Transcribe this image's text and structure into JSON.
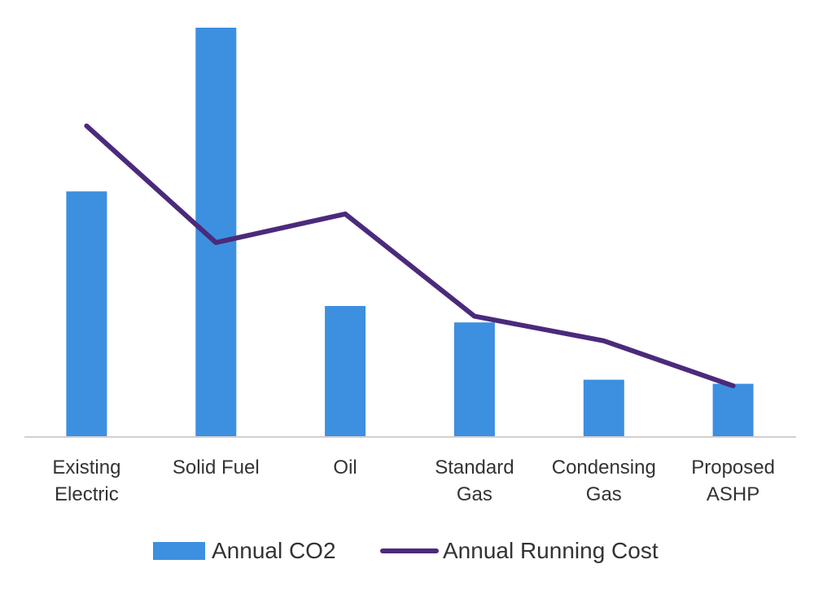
{
  "chart_data": {
    "type": "bar",
    "categories": [
      [
        "Existing",
        "Electric"
      ],
      [
        "Solid Fuel"
      ],
      [
        "Oil"
      ],
      [
        "Standard",
        "Gas"
      ],
      [
        "Condensing",
        "Gas"
      ],
      [
        "Proposed",
        "ASHP"
      ]
    ],
    "series": [
      {
        "name": "Annual CO2",
        "type": "bar",
        "color": "#3d8fe0",
        "values": [
          6.0,
          10.0,
          3.2,
          2.8,
          1.4,
          1.3
        ]
      },
      {
        "name": "Annual Running Cost",
        "type": "line",
        "color": "#4b2a7b",
        "values": [
          7.6,
          4.75,
          5.45,
          2.95,
          2.35,
          1.25
        ]
      }
    ],
    "title": "",
    "xlabel": "",
    "ylabel": "",
    "ylim": [
      0,
      10
    ],
    "grid": false,
    "legend_position": "bottom"
  }
}
